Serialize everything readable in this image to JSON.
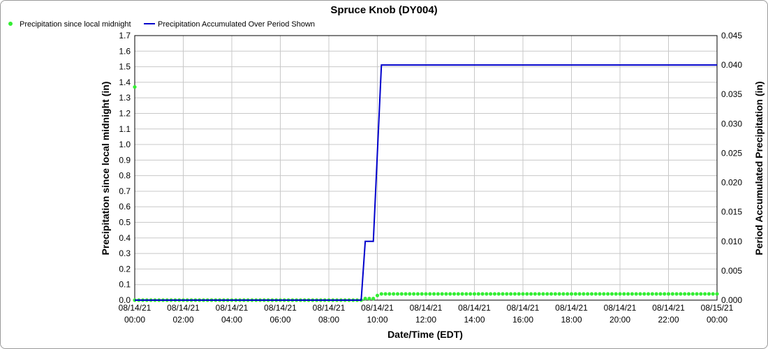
{
  "chart_data": {
    "type": "line",
    "title": "Spruce Knob (DY004)",
    "xlabel": "Date/Time (EDT)",
    "ylabel_left": "Precipitation since local midnight (in)",
    "ylabel_right": "Period Accumulated Precipitation (in)",
    "x_range": [
      "2021-08-14 00:00",
      "2021-08-15 00:00"
    ],
    "x_ticks": [
      {
        "date": "08/14/21",
        "time": "00:00"
      },
      {
        "date": "08/14/21",
        "time": "02:00"
      },
      {
        "date": "08/14/21",
        "time": "04:00"
      },
      {
        "date": "08/14/21",
        "time": "06:00"
      },
      {
        "date": "08/14/21",
        "time": "08:00"
      },
      {
        "date": "08/14/21",
        "time": "10:00"
      },
      {
        "date": "08/14/21",
        "time": "12:00"
      },
      {
        "date": "08/14/21",
        "time": "14:00"
      },
      {
        "date": "08/14/21",
        "time": "16:00"
      },
      {
        "date": "08/14/21",
        "time": "18:00"
      },
      {
        "date": "08/14/21",
        "time": "20:00"
      },
      {
        "date": "08/14/21",
        "time": "22:00"
      },
      {
        "date": "08/15/21",
        "time": "00:00"
      }
    ],
    "y_left": {
      "min": 0,
      "max": 1.7,
      "step": 0.1,
      "ticks": [
        "0.0",
        "0.1",
        "0.2",
        "0.3",
        "0.4",
        "0.5",
        "0.6",
        "0.7",
        "0.8",
        "0.9",
        "1.0",
        "1.1",
        "1.2",
        "1.3",
        "1.4",
        "1.5",
        "1.6",
        "1.7"
      ]
    },
    "y_right": {
      "min": 0,
      "max": 0.045,
      "step": 0.005,
      "ticks": [
        "0.000",
        "0.005",
        "0.010",
        "0.015",
        "0.020",
        "0.025",
        "0.030",
        "0.035",
        "0.040",
        "0.045"
      ]
    },
    "grid": true,
    "legend_position": "top-left",
    "series": [
      {
        "name": "Precipitation since local midnight",
        "axis": "left",
        "style": "dots",
        "color": "#33ee33",
        "interval_minutes": 10,
        "start": "2021-08-14 00:00",
        "end": "2021-08-15 00:00",
        "steps": [
          {
            "from": "2021-08-14 00:00",
            "value": 0.0
          },
          {
            "from": "2021-08-14 09:30",
            "value": 0.01
          },
          {
            "from": "2021-08-14 10:00",
            "value": 0.03
          },
          {
            "from": "2021-08-14 10:10",
            "value": 0.04
          }
        ],
        "extra_points": [
          {
            "x": "2021-08-14 00:00",
            "y": 1.37
          }
        ]
      },
      {
        "name": "Precipitation Accumulated Over Period Shown",
        "axis": "right",
        "style": "line",
        "color": "#0000cc",
        "points": [
          {
            "x": "2021-08-14 00:00",
            "y": 0.0
          },
          {
            "x": "2021-08-14 09:20",
            "y": 0.0
          },
          {
            "x": "2021-08-14 09:30",
            "y": 0.01
          },
          {
            "x": "2021-08-14 09:50",
            "y": 0.01
          },
          {
            "x": "2021-08-14 10:10",
            "y": 0.04
          },
          {
            "x": "2021-08-15 00:00",
            "y": 0.04
          }
        ]
      }
    ]
  }
}
